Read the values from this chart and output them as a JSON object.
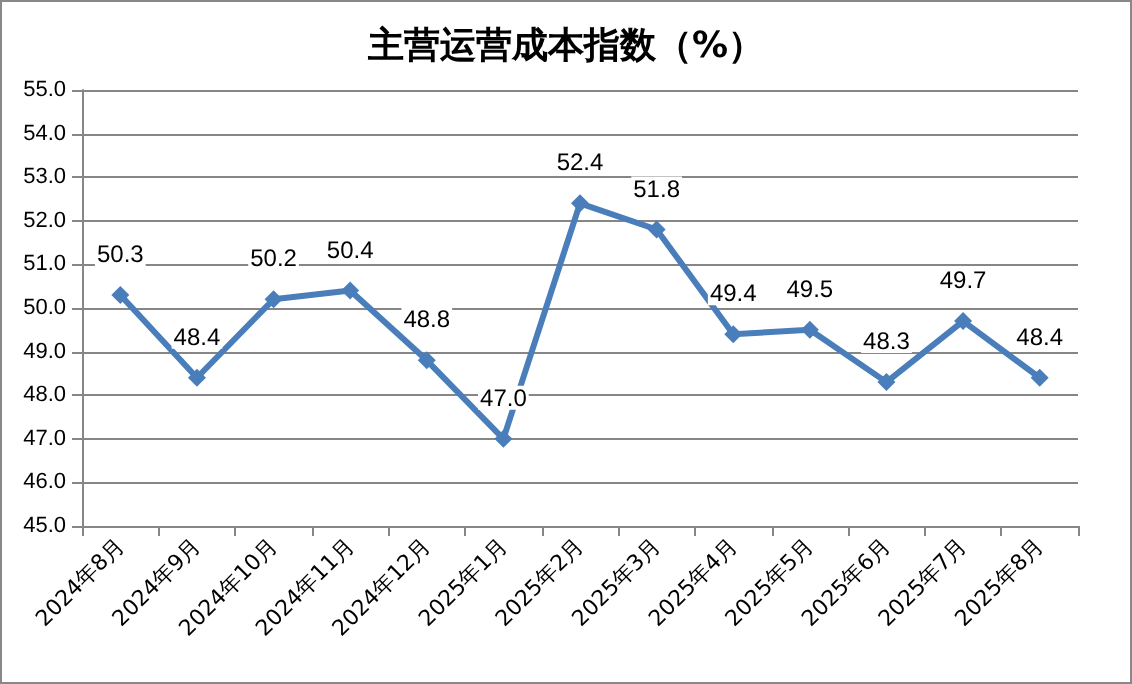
{
  "chart_data": {
    "type": "line",
    "title": "主营运营成本指数（%）",
    "categories": [
      "2024年8月",
      "2024年9月",
      "2024年10月",
      "2024年11月",
      "2024年12月",
      "2025年1月",
      "2025年2月",
      "2025年3月",
      "2025年4月",
      "2025年5月",
      "2025年6月",
      "2025年7月",
      "2025年8月"
    ],
    "series": [
      {
        "color": "#4a7ebb",
        "values": [
          50.3,
          48.4,
          50.2,
          50.4,
          48.8,
          47.0,
          52.4,
          51.8,
          49.4,
          49.5,
          48.3,
          49.7,
          48.4
        ]
      }
    ],
    "value_labels": [
      "50.3",
      "48.4",
      "50.2",
      "50.4",
      "48.8",
      "47.0",
      "52.4",
      "51.8",
      "49.4",
      "49.5",
      "48.3",
      "49.7",
      "48.4"
    ],
    "ylim": [
      45,
      55
    ],
    "yticks": [
      {
        "value": 45,
        "label": "45.0"
      },
      {
        "value": 46,
        "label": "46.0"
      },
      {
        "value": 47,
        "label": "47.0"
      },
      {
        "value": 48,
        "label": "48.0"
      },
      {
        "value": 49,
        "label": "49.0"
      },
      {
        "value": 50,
        "label": "50.0"
      },
      {
        "value": 51,
        "label": "51.0"
      },
      {
        "value": 52,
        "label": "52.0"
      },
      {
        "value": 53,
        "label": "53.0"
      },
      {
        "value": 54,
        "label": "54.0"
      },
      {
        "value": 55,
        "label": "55.0"
      }
    ],
    "grid": "y",
    "marker": "diamond",
    "line_style": "solid"
  }
}
